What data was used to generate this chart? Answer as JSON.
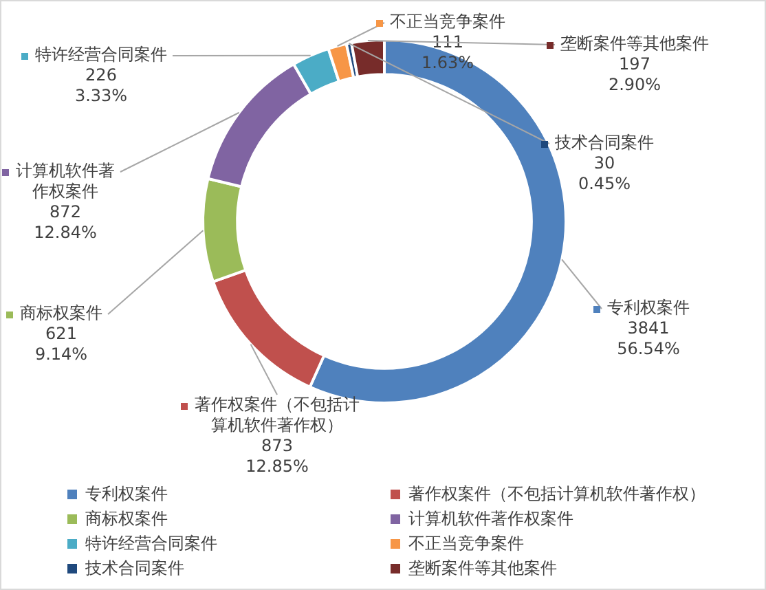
{
  "chart_data": {
    "type": "donut",
    "categories": [
      "专利权案件",
      "著作权案件（不包括计算机软件著作权）",
      "商标权案件",
      "计算机软件著作权案件",
      "特许经营合同案件",
      "不正当竞争案件",
      "技术合同案件",
      "垄断案件等其他案件"
    ],
    "values": [
      3841,
      873,
      621,
      872,
      226,
      111,
      30,
      197
    ],
    "colors": [
      "#4f81bd",
      "#c0504d",
      "#9bbb59",
      "#8064a2",
      "#4bacc6",
      "#f79646",
      "#1f497d",
      "#772c2a"
    ],
    "value_labels": [
      "3841\n56.54%",
      "873\n12.85%",
      "621\n9.14%",
      "872\n12.84%",
      "226\n3.33%",
      "111\n1.63%",
      "30\n0.45%",
      "197\n2.90%"
    ],
    "legend": "bottom"
  }
}
